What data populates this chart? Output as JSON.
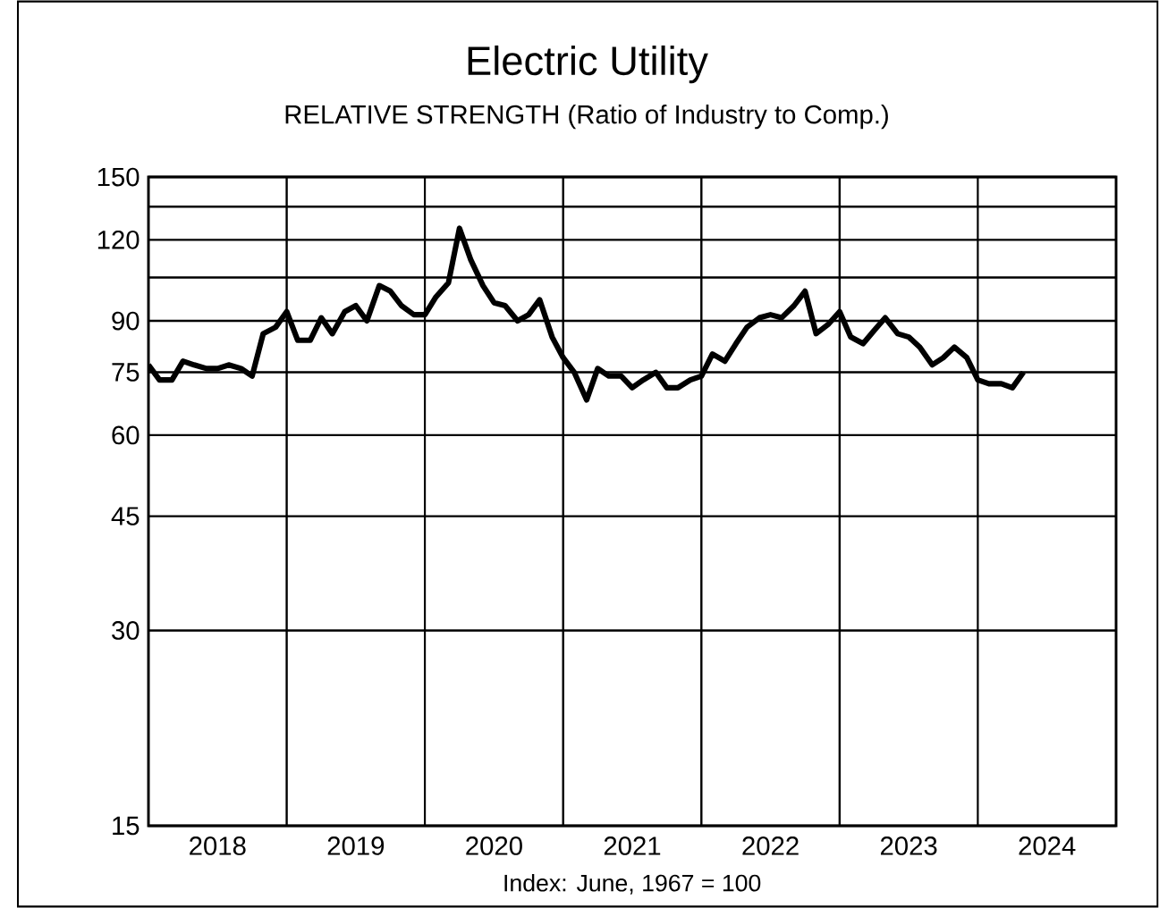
{
  "chart_data": {
    "type": "line",
    "title": "Electric Utility",
    "subtitle": "RELATIVE STRENGTH (Ratio of Industry to Comp.)",
    "annotations": [
      "Index: June, 1967 = 100"
    ],
    "x": [
      2018.0,
      2018.08,
      2018.17,
      2018.25,
      2018.33,
      2018.42,
      2018.5,
      2018.58,
      2018.67,
      2018.75,
      2018.83,
      2018.92,
      2019.0,
      2019.08,
      2019.17,
      2019.25,
      2019.33,
      2019.42,
      2019.5,
      2019.58,
      2019.67,
      2019.75,
      2019.83,
      2019.92,
      2020.0,
      2020.08,
      2020.17,
      2020.25,
      2020.33,
      2020.42,
      2020.5,
      2020.58,
      2020.67,
      2020.75,
      2020.83,
      2020.92,
      2021.0,
      2021.08,
      2021.17,
      2021.25,
      2021.33,
      2021.42,
      2021.5,
      2021.58,
      2021.67,
      2021.75,
      2021.83,
      2021.92,
      2022.0,
      2022.08,
      2022.17,
      2022.25,
      2022.33,
      2022.42,
      2022.5,
      2022.58,
      2022.67,
      2022.75,
      2022.83,
      2022.92,
      2023.0,
      2023.08,
      2023.17,
      2023.25,
      2023.33,
      2023.42,
      2023.5,
      2023.58,
      2023.67,
      2023.75,
      2023.83,
      2023.92,
      2024.0,
      2024.08,
      2024.17,
      2024.25,
      2024.33
    ],
    "values": [
      77,
      73,
      73,
      78,
      77,
      76,
      76,
      77,
      76,
      74,
      86,
      88,
      93,
      84,
      84,
      91,
      86,
      93,
      95,
      90,
      102,
      100,
      95,
      92,
      92,
      98,
      103,
      125,
      112,
      102,
      96,
      95,
      90,
      92,
      97,
      85,
      79,
      75,
      68,
      76,
      74,
      74,
      71,
      73,
      75,
      71,
      71,
      73,
      74,
      80,
      78,
      83,
      88,
      91,
      92,
      91,
      95,
      100,
      86,
      89,
      93,
      85,
      83,
      87,
      91,
      86,
      85,
      82,
      77,
      79,
      82,
      79,
      73,
      72,
      72,
      71,
      75
    ],
    "color": "#000000",
    "marker": "none",
    "line_style": "solid",
    "xlim": [
      2018,
      2025
    ],
    "xticks": [
      {
        "value": 2018.5,
        "label": "2018"
      },
      {
        "value": 2019.5,
        "label": "2019"
      },
      {
        "value": 2020.5,
        "label": "2020"
      },
      {
        "value": 2021.5,
        "label": "2021"
      },
      {
        "value": 2022.5,
        "label": "2022"
      },
      {
        "value": 2023.5,
        "label": "2023"
      },
      {
        "value": 2024.5,
        "label": "2024"
      }
    ],
    "ylim": [
      15,
      150
    ],
    "log": "y",
    "yticks": [
      15,
      30,
      45,
      60,
      75,
      90,
      {
        "value": 105,
        "label": null
      },
      120,
      {
        "value": 135,
        "label": null
      },
      150
    ],
    "grid": "y",
    "ref_lines": [
      {
        "axis": "x",
        "value": 2019
      },
      {
        "axis": "x",
        "value": 2020
      },
      {
        "axis": "x",
        "value": 2021
      },
      {
        "axis": "x",
        "value": 2022
      },
      {
        "axis": "x",
        "value": 2023
      },
      {
        "axis": "x",
        "value": 2024
      }
    ]
  }
}
